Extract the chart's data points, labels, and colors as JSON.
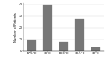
{
  "categories": [
    "37.5°C",
    "38°C",
    "38.3°C",
    "38.5°C",
    "39°C"
  ],
  "values": [
    10,
    40,
    8,
    28,
    3
  ],
  "bar_color": "#777777",
  "ylabel": "Number of Patients",
  "ylim": [
    0,
    41
  ],
  "yticks": [
    0,
    10,
    20,
    30,
    40
  ],
  "bar_width": 0.55,
  "background_color": "#ffffff",
  "tick_fontsize": 2.8,
  "ylabel_fontsize": 2.8
}
